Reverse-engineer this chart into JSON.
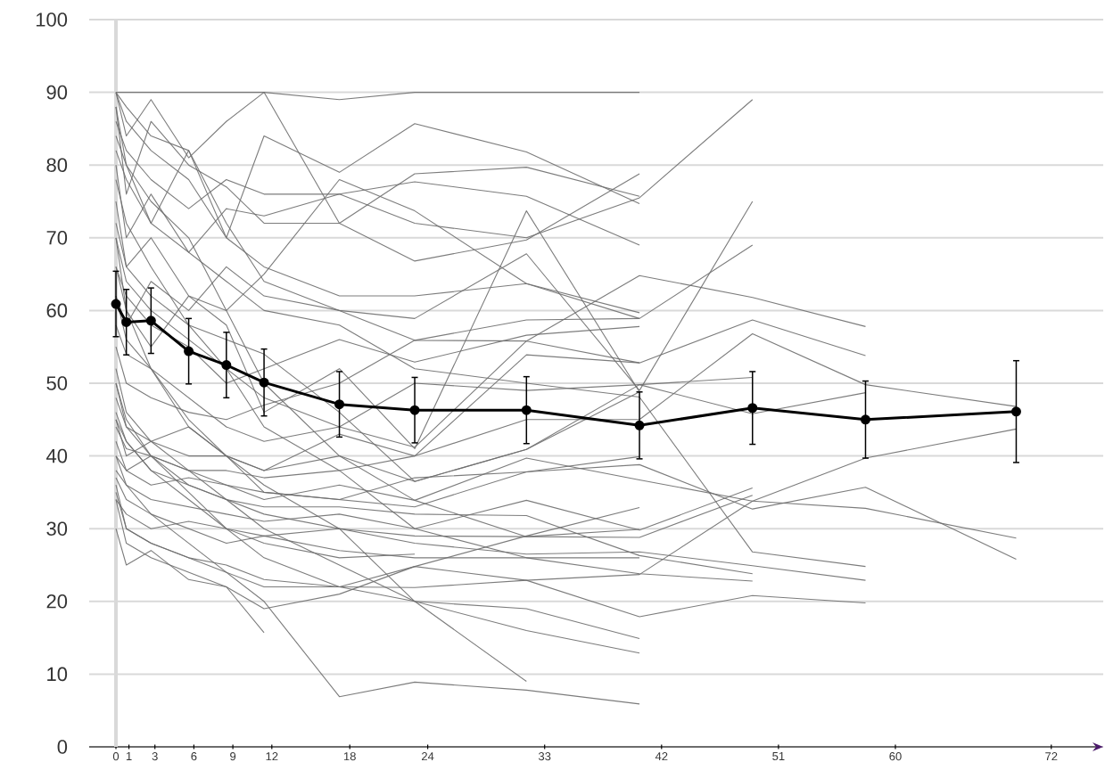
{
  "chart_data": {
    "type": "line",
    "xlim": [
      -2.06,
      76
    ],
    "ylim": [
      0,
      100
    ],
    "xticks": [
      0,
      1,
      3,
      6,
      9,
      12,
      18,
      24,
      33,
      42,
      51,
      60,
      72
    ],
    "yticks": [
      0,
      10,
      20,
      30,
      40,
      50,
      60,
      70,
      80,
      90,
      100
    ],
    "grid": "y",
    "x": [
      0,
      0.8,
      2.7,
      5.6,
      8.5,
      11.4,
      17.2,
      23.0,
      31.6,
      40.3,
      49.0,
      57.7,
      69.3
    ],
    "series": [
      {
        "color": "#6e6e6e",
        "values": [
          90,
          90,
          90,
          90,
          90,
          90,
          89,
          90,
          90,
          90,
          null,
          null,
          null
        ]
      },
      {
        "color": "#6e6e6e",
        "values": [
          86,
          82,
          78,
          74,
          78,
          76,
          76,
          72,
          70,
          75.5,
          89,
          null,
          null
        ]
      },
      {
        "color": "#6e6e6e",
        "values": [
          84,
          80,
          72,
          82,
          70,
          84,
          79,
          85.7,
          81.8,
          74.7,
          null,
          null,
          null
        ]
      },
      {
        "color": "#6e6e6e",
        "values": [
          88,
          76,
          86,
          80,
          77,
          72,
          72,
          78.8,
          79.7,
          75.7,
          null,
          null,
          null
        ]
      },
      {
        "color": "#6e6e6e",
        "values": [
          80,
          70,
          76,
          68,
          74,
          73,
          76,
          77.7,
          75.7,
          69.0,
          null,
          null,
          null
        ]
      },
      {
        "color": "#6e6e6e",
        "values": [
          90,
          84,
          89,
          81,
          86,
          90,
          72,
          66.8,
          69.7,
          78.8,
          null,
          null,
          null
        ]
      },
      {
        "color": "#6e6e6e",
        "values": [
          75,
          66,
          70,
          62,
          60,
          65,
          78,
          73.7,
          63.7,
          59.7,
          null,
          null,
          null
        ]
      },
      {
        "color": "#6e6e6e",
        "values": [
          62,
          58,
          64,
          60,
          66,
          62,
          60,
          58.9,
          67.8,
          49,
          75,
          null,
          null
        ]
      },
      {
        "color": "#6e6e6e",
        "values": [
          70,
          60,
          55,
          62,
          58,
          46,
          52,
          41,
          73.7,
          48.8,
          null,
          null,
          null
        ]
      },
      {
        "color": "#6e6e6e",
        "values": [
          55,
          50,
          48,
          46,
          45,
          47,
          50,
          55.9,
          58.7,
          58.9,
          69,
          null,
          null
        ]
      },
      {
        "color": "#6e6e6e",
        "values": [
          66,
          62,
          58,
          55,
          50,
          52,
          56,
          52.9,
          56.6,
          57.8,
          null,
          null,
          null
        ]
      },
      {
        "color": "#6e6e6e",
        "values": [
          58,
          54,
          52,
          48,
          44,
          42,
          44,
          41.2,
          55.8,
          64.8,
          61.8,
          57.8,
          null
        ]
      },
      {
        "color": "#6e6e6e",
        "values": [
          48,
          44,
          42,
          40,
          40,
          38,
          43,
          40,
          53.9,
          52.8,
          58.7,
          53.8,
          null
        ]
      },
      {
        "color": "#6e6e6e",
        "values": [
          45,
          40,
          42,
          44,
          40,
          38,
          40,
          36.5,
          40.9,
          49.8,
          45.8,
          48.7,
          null
        ]
      },
      {
        "color": "#6e6e6e",
        "values": [
          42,
          38,
          40,
          38,
          38,
          37,
          38,
          40,
          45,
          45,
          56.8,
          49.8,
          46.8
        ]
      },
      {
        "color": "#6e6e6e",
        "values": [
          36,
          30,
          28,
          26,
          24,
          22,
          22,
          21.9,
          22.9,
          23.7,
          33.8,
          39.7,
          43.7
        ]
      },
      {
        "color": "#6e6e6e",
        "values": [
          50,
          44,
          40,
          38,
          36,
          34,
          36,
          33.9,
          39.7,
          36.7,
          33.8,
          32.8,
          28.7
        ]
      },
      {
        "color": "#6e6e6e",
        "values": [
          40,
          38,
          36,
          37,
          36,
          35,
          34,
          37,
          37.8,
          38.8,
          32.7,
          35.7,
          25.8
        ]
      },
      {
        "color": "#6e6e6e",
        "values": [
          38,
          36,
          34,
          33,
          32,
          31,
          32,
          30,
          33.9,
          29.8,
          35.6,
          null,
          null
        ]
      },
      {
        "color": "#6e6e6e",
        "values": [
          34,
          32,
          30,
          31,
          30,
          29,
          30,
          29,
          28.9,
          28.8,
          34.6,
          null,
          null
        ]
      },
      {
        "color": "#6e6e6e",
        "values": [
          44,
          41,
          40,
          36,
          34,
          33,
          33,
          32,
          31.8,
          26.3,
          23.8,
          null,
          null
        ]
      },
      {
        "color": "#6e6e6e",
        "values": [
          37,
          34,
          32,
          30,
          28,
          29,
          27,
          26,
          26.0,
          23.8,
          22.8,
          null,
          null
        ]
      },
      {
        "color": "#6e6e6e",
        "values": [
          70,
          64,
          60,
          56,
          52,
          48,
          44,
          50,
          49,
          49.8,
          50.8,
          null,
          null
        ]
      },
      {
        "color": "#6e6e6e",
        "values": [
          82,
          78,
          72,
          68,
          64,
          60,
          58,
          52,
          50,
          48.1,
          26.8,
          24.8,
          null
        ]
      },
      {
        "color": "#6e6e6e",
        "values": [
          46,
          42,
          38,
          36,
          34,
          32,
          30,
          28,
          26.5,
          26.8,
          24.9,
          22.9,
          null
        ]
      },
      {
        "color": "#6e6e6e",
        "values": [
          35,
          30,
          28,
          26,
          25,
          23,
          22,
          24.8,
          22.9,
          17.9,
          20.8,
          19.8,
          null
        ]
      },
      {
        "color": "#6e6e6e",
        "values": [
          52,
          46,
          42,
          38,
          34,
          30,
          25,
          20,
          16,
          12.9,
          null,
          null,
          null
        ]
      },
      {
        "color": "#6e6e6e",
        "values": [
          50,
          45,
          40,
          35,
          30,
          26,
          22,
          20,
          19,
          14.9,
          null,
          null,
          null
        ]
      },
      {
        "color": "#6e6e6e",
        "values": [
          40,
          36,
          32,
          28,
          24,
          20,
          6.9,
          8.9,
          7.8,
          5.9,
          null,
          null,
          null
        ]
      },
      {
        "color": "#6e6e6e",
        "values": [
          66,
          60,
          52,
          44,
          40,
          36,
          30,
          20,
          9.0,
          null,
          null,
          null,
          null
        ]
      },
      {
        "color": "#6e6e6e",
        "values": [
          45,
          42,
          38,
          34,
          30,
          28,
          26,
          26.5,
          null,
          null,
          null,
          null,
          null
        ]
      },
      {
        "color": "#6e6e6e",
        "values": [
          34,
          28,
          26,
          24,
          22,
          15.7,
          null,
          null,
          null,
          null,
          null,
          null,
          null
        ]
      },
      {
        "color": "#6e6e6e",
        "values": [
          30,
          25,
          27,
          23,
          22,
          19,
          21,
          24.8,
          29,
          32.9,
          null,
          null,
          null
        ]
      },
      {
        "color": "#6e6e6e",
        "values": [
          88,
          80,
          75,
          70,
          60,
          50,
          40,
          33.9,
          28.9,
          29.9,
          null,
          null,
          null
        ]
      },
      {
        "color": "#6e6e6e",
        "values": [
          78,
          72,
          66,
          58,
          52,
          44,
          38,
          30,
          26.0,
          26.0,
          null,
          null,
          null
        ]
      },
      {
        "color": "#6e6e6e",
        "values": [
          62,
          56,
          52,
          45,
          40,
          35,
          34,
          33,
          37.8,
          39.9,
          null,
          null,
          null
        ]
      },
      {
        "color": "#6e6e6e",
        "values": [
          90,
          88,
          84,
          82,
          72,
          64,
          60,
          55.9,
          55.8,
          52.8,
          null,
          null,
          null
        ]
      },
      {
        "color": "#6e6e6e",
        "values": [
          72,
          66,
          62,
          58,
          56,
          54,
          46,
          36.5,
          40.9,
          48.8,
          null,
          null,
          null
        ]
      },
      {
        "color": "#6e6e6e",
        "values": [
          90,
          86,
          82,
          78,
          70,
          66,
          62,
          62,
          63.7,
          58.9,
          null,
          null,
          null
        ]
      },
      {
        "color": "#000000",
        "marker": "circle",
        "values": [
          60.9,
          58.4,
          58.6,
          54.4,
          52.5,
          50.1,
          47.1,
          46.3,
          46.3,
          44.2,
          46.6,
          45.0,
          46.1
        ],
        "errors": [
          4.5,
          4.5,
          4.5,
          4.5,
          4.5,
          4.6,
          4.5,
          4.5,
          4.6,
          4.6,
          5.0,
          5.3,
          7.0
        ]
      }
    ]
  }
}
